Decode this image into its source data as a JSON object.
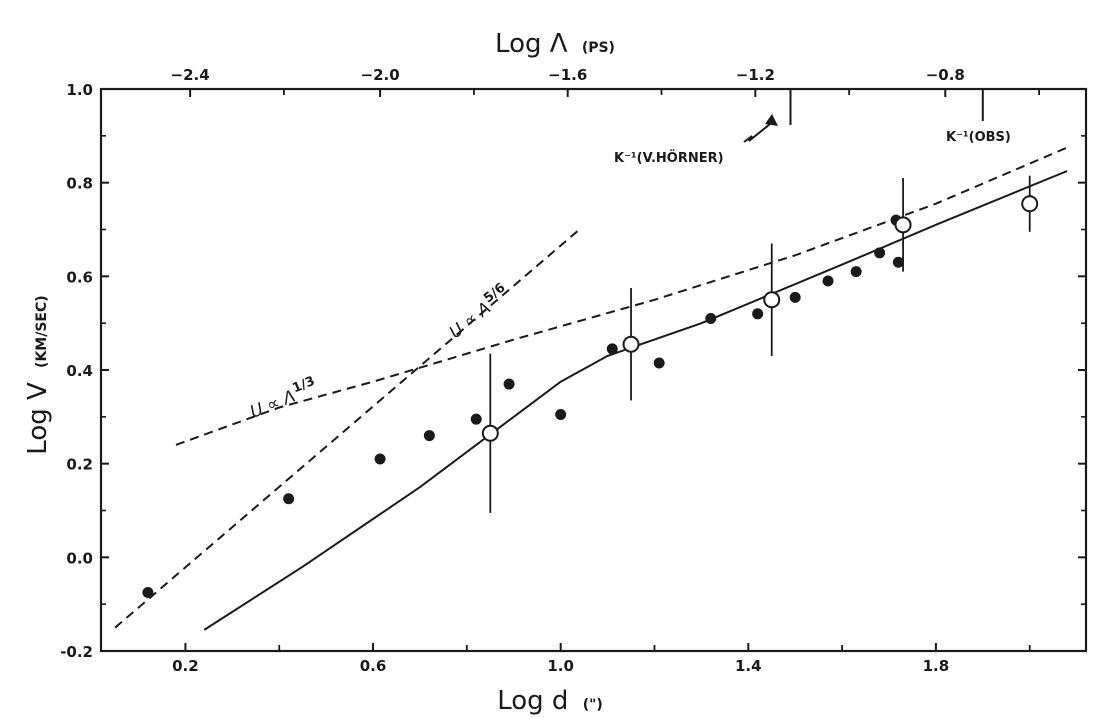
{
  "chart_data": {
    "type": "scatter",
    "title": "",
    "xlabel": {
      "text": "Log d",
      "unit": "(\")"
    },
    "x2label": {
      "text": "Log Λ",
      "unit": "(PS)"
    },
    "ylabel": {
      "text": "Log V",
      "unit": "(KM/SEC)"
    },
    "xlim": [
      0.02,
      2.12
    ],
    "ylim": [
      -0.2,
      1.0
    ],
    "x_ticks": [
      "0.2",
      "0.6",
      "1.0",
      "1.4",
      "1.8"
    ],
    "x_tick_values": [
      0.2,
      0.6,
      1.0,
      1.4,
      1.8
    ],
    "x2_ticks": [
      "−2.4",
      "−2.0",
      "−1.6",
      "−1.2",
      "−0.8"
    ],
    "x2_tick_positions": [
      0.21,
      0.615,
      1.015,
      1.415,
      1.82
    ],
    "y_ticks": [
      "-0.2",
      "0.0",
      "0.2",
      "0.4",
      "0.6",
      "0.8",
      "1.0"
    ],
    "y_tick_values": [
      -0.2,
      0.0,
      0.2,
      0.4,
      0.6,
      0.8,
      1.0
    ],
    "grid": false,
    "series": [
      {
        "kind": "filled-points",
        "points": [
          [
            0.12,
            -0.075
          ],
          [
            0.42,
            0.125
          ],
          [
            0.615,
            0.21
          ],
          [
            0.72,
            0.26
          ],
          [
            0.82,
            0.295
          ],
          [
            0.89,
            0.37
          ],
          [
            1.0,
            0.305
          ],
          [
            1.11,
            0.445
          ],
          [
            1.21,
            0.415
          ],
          [
            1.32,
            0.51
          ],
          [
            1.42,
            0.52
          ],
          [
            1.5,
            0.555
          ],
          [
            1.57,
            0.59
          ],
          [
            1.63,
            0.61
          ],
          [
            1.68,
            0.65
          ],
          [
            1.72,
            0.63
          ],
          [
            1.715,
            0.72
          ]
        ]
      },
      {
        "kind": "open-points-with-error-bars",
        "points": [
          [
            0.85,
            0.265,
            0.17
          ],
          [
            1.15,
            0.455,
            0.12
          ],
          [
            1.45,
            0.55,
            0.12
          ],
          [
            1.73,
            0.71,
            0.1
          ],
          [
            2.0,
            0.755,
            0.06
          ]
        ]
      },
      {
        "kind": "solid-line",
        "points": [
          [
            0.24,
            -0.155
          ],
          [
            0.45,
            -0.02
          ],
          [
            0.7,
            0.15
          ],
          [
            0.9,
            0.3
          ],
          [
            1.0,
            0.375
          ],
          [
            1.1,
            0.43
          ],
          [
            1.3,
            0.5
          ],
          [
            1.6,
            0.625
          ],
          [
            1.8,
            0.71
          ],
          [
            2.08,
            0.825
          ]
        ]
      },
      {
        "kind": "dashed-line",
        "points": [
          [
            0.05,
            -0.15
          ],
          [
            1.04,
            0.7
          ]
        ]
      },
      {
        "kind": "dashed-line",
        "points": [
          [
            0.18,
            0.24
          ],
          [
            0.4,
            0.32
          ],
          [
            0.6,
            0.375
          ],
          [
            0.7,
            0.405
          ],
          [
            0.9,
            0.465
          ],
          [
            1.2,
            0.55
          ],
          [
            1.5,
            0.645
          ],
          [
            1.8,
            0.755
          ],
          [
            2.08,
            0.875
          ]
        ]
      }
    ],
    "annotations": {
      "dashed_steep": "U ∝ Λ",
      "dashed_steep_exp": "5/6",
      "dashed_shallow": "U ∝ Λ",
      "dashed_shallow_exp": "1/3",
      "marker_horner": "K⁻¹(V.HÖRNER)",
      "marker_obs": "K⁻¹(OBS)"
    },
    "markers": {
      "horner_x": 1.49,
      "obs_x": 1.9
    }
  }
}
